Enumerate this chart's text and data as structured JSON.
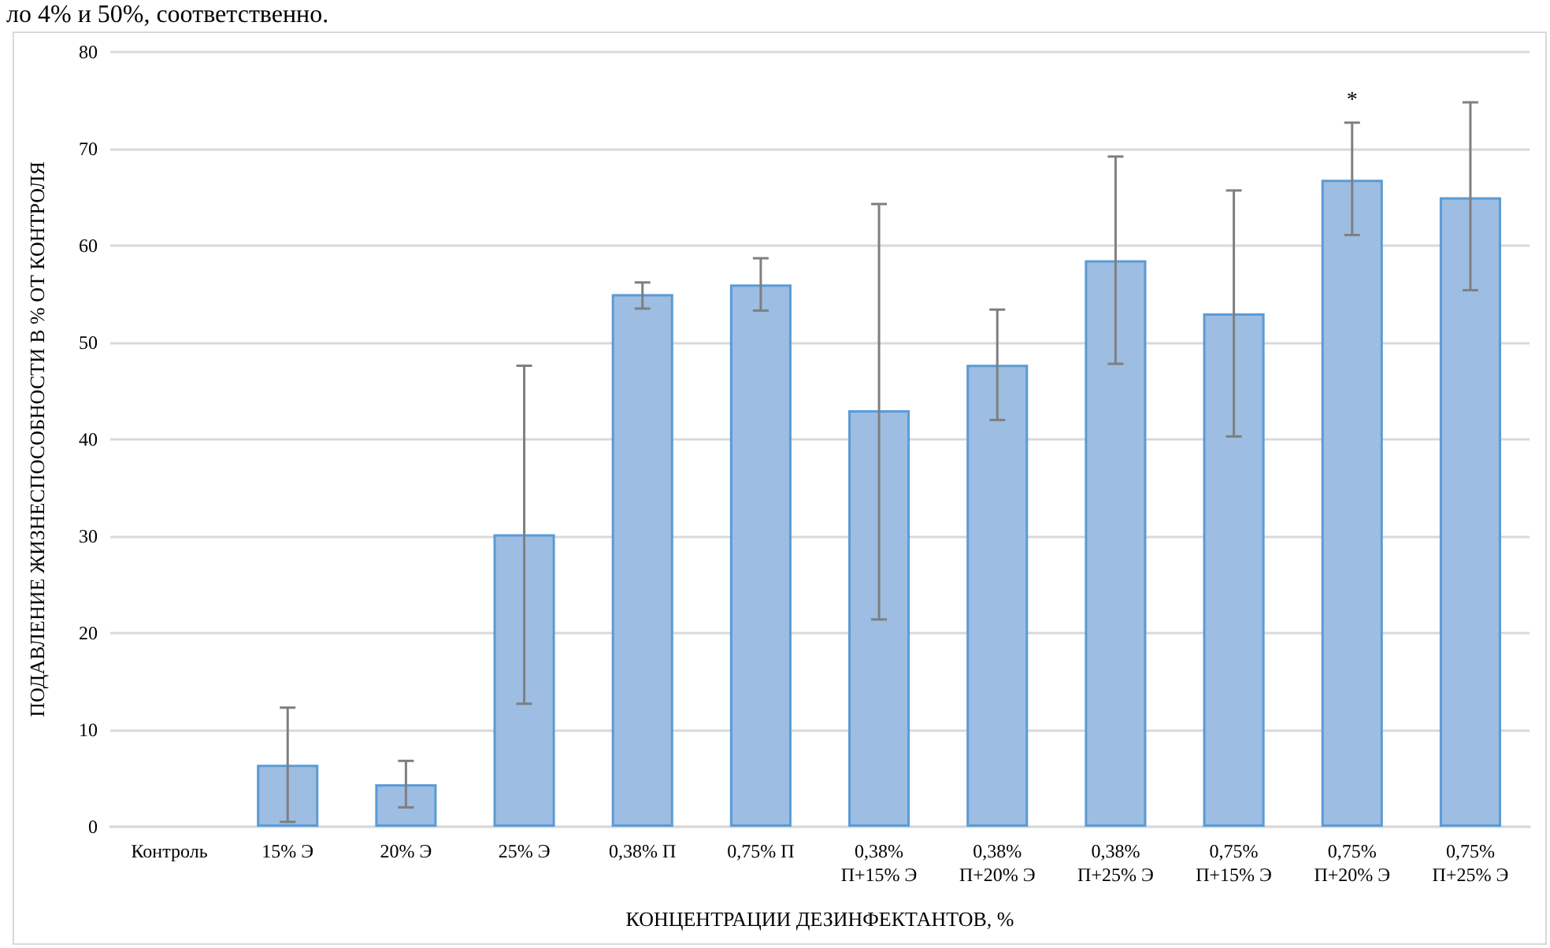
{
  "chart_data": {
    "type": "bar",
    "xlabel": "КОНЦЕНТРАЦИИ ДЕЗИНФЕКТАНТОВ, %",
    "ylabel": "ПОДАВЛЕНИЕ ЖИЗНЕСПОСОБНОСТИ В % ОТ КОНТРОЛЯ",
    "categories": [
      "Контроль",
      "15% Э",
      "20% Э",
      "25% Э",
      "0,38% П",
      "0,75% П",
      "0,38%\nП+15% Э",
      "0,38%\nП+20% Э",
      "0,38%\nП+25% Э",
      "0,75%\nП+15% Э",
      "0,75%\nП+20% Э",
      "0,75%\nП+25% Э"
    ],
    "values": [
      0,
      6.4,
      4.4,
      30.2,
      55,
      56,
      43,
      47.7,
      58.5,
      53,
      66.8,
      65
    ],
    "errors": [
      null,
      [
        0.5,
        12.3
      ],
      [
        2,
        6.8
      ],
      [
        12.7,
        47.6
      ],
      [
        53.5,
        56.2
      ],
      [
        53.3,
        58.7
      ],
      [
        21.4,
        64.3
      ],
      [
        42,
        53.4
      ],
      [
        47.8,
        69.2
      ],
      [
        40.3,
        65.7
      ],
      [
        61.1,
        72.7
      ],
      [
        55.4,
        74.8
      ]
    ],
    "color": "#9dbde3",
    "ylim": [
      0,
      80
    ],
    "yticks": [
      0,
      10,
      20,
      30,
      40,
      50,
      60,
      70,
      80
    ],
    "grid": "y",
    "annotations": [
      "ло 4% и 50%, соответственно.",
      "*"
    ]
  }
}
